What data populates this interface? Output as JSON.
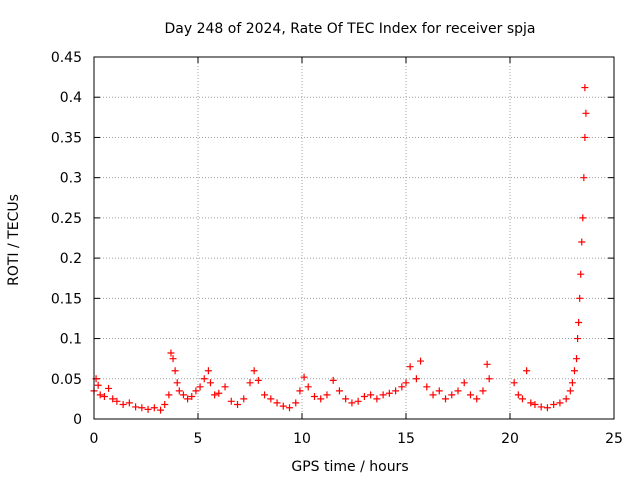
{
  "chart_data": {
    "type": "scatter",
    "title": "Day 248 of 2024, Rate Of TEC Index for receiver spja",
    "xlabel": "GPS time / hours",
    "ylabel": "ROTI / TECUs",
    "xlim": [
      0,
      25
    ],
    "ylim": [
      0,
      0.45
    ],
    "xticks": [
      0,
      5,
      10,
      15,
      20,
      25
    ],
    "yticks": [
      0,
      0.05,
      0.1,
      0.15,
      0.2,
      0.25,
      0.3,
      0.35,
      0.4,
      0.45
    ],
    "grid": true,
    "marker": "plus",
    "series": [
      {
        "color": "#ff0000",
        "x": [
          0.0,
          0.1,
          0.2,
          0.3,
          0.5,
          0.7,
          0.9,
          1.1,
          1.4,
          1.7,
          2.0,
          2.3,
          2.6,
          2.9,
          3.2,
          3.4,
          3.6,
          3.7,
          3.8,
          3.9,
          4.0,
          4.1,
          4.3,
          4.5,
          4.7,
          4.9,
          5.1,
          5.3,
          5.5,
          5.6,
          5.8,
          6.0,
          6.3,
          6.6,
          6.9,
          7.2,
          7.5,
          7.7,
          7.9,
          8.2,
          8.5,
          8.8,
          9.1,
          9.4,
          9.7,
          9.9,
          10.1,
          10.3,
          10.6,
          10.9,
          11.2,
          11.5,
          11.8,
          12.1,
          12.4,
          12.7,
          13.0,
          13.3,
          13.6,
          13.9,
          14.2,
          14.5,
          14.8,
          15.0,
          15.2,
          15.5,
          15.7,
          16.0,
          16.3,
          16.6,
          16.9,
          17.2,
          17.5,
          17.8,
          18.1,
          18.4,
          18.7,
          18.9,
          19.0,
          20.2,
          20.4,
          20.6,
          20.8,
          21.0,
          21.2,
          21.5,
          21.8,
          22.1,
          22.4,
          22.7,
          22.9,
          23.0,
          23.1,
          23.2,
          23.25,
          23.3,
          23.35,
          23.4,
          23.45,
          23.5,
          23.55,
          23.6,
          23.6,
          23.65
        ],
        "y": [
          0.035,
          0.05,
          0.042,
          0.03,
          0.028,
          0.038,
          0.025,
          0.022,
          0.018,
          0.02,
          0.015,
          0.014,
          0.012,
          0.014,
          0.011,
          0.018,
          0.03,
          0.082,
          0.075,
          0.06,
          0.045,
          0.035,
          0.03,
          0.025,
          0.028,
          0.035,
          0.04,
          0.05,
          0.06,
          0.045,
          0.03,
          0.032,
          0.04,
          0.022,
          0.018,
          0.025,
          0.045,
          0.06,
          0.048,
          0.03,
          0.025,
          0.02,
          0.016,
          0.014,
          0.02,
          0.035,
          0.052,
          0.04,
          0.028,
          0.025,
          0.03,
          0.048,
          0.035,
          0.025,
          0.02,
          0.022,
          0.028,
          0.03,
          0.025,
          0.03,
          0.032,
          0.035,
          0.04,
          0.045,
          0.065,
          0.05,
          0.072,
          0.04,
          0.03,
          0.035,
          0.025,
          0.03,
          0.035,
          0.045,
          0.03,
          0.025,
          0.035,
          0.068,
          0.05,
          0.045,
          0.03,
          0.025,
          0.06,
          0.02,
          0.018,
          0.015,
          0.014,
          0.018,
          0.02,
          0.025,
          0.035,
          0.045,
          0.06,
          0.075,
          0.1,
          0.12,
          0.15,
          0.18,
          0.22,
          0.25,
          0.3,
          0.35,
          0.412,
          0.38
        ]
      }
    ]
  }
}
